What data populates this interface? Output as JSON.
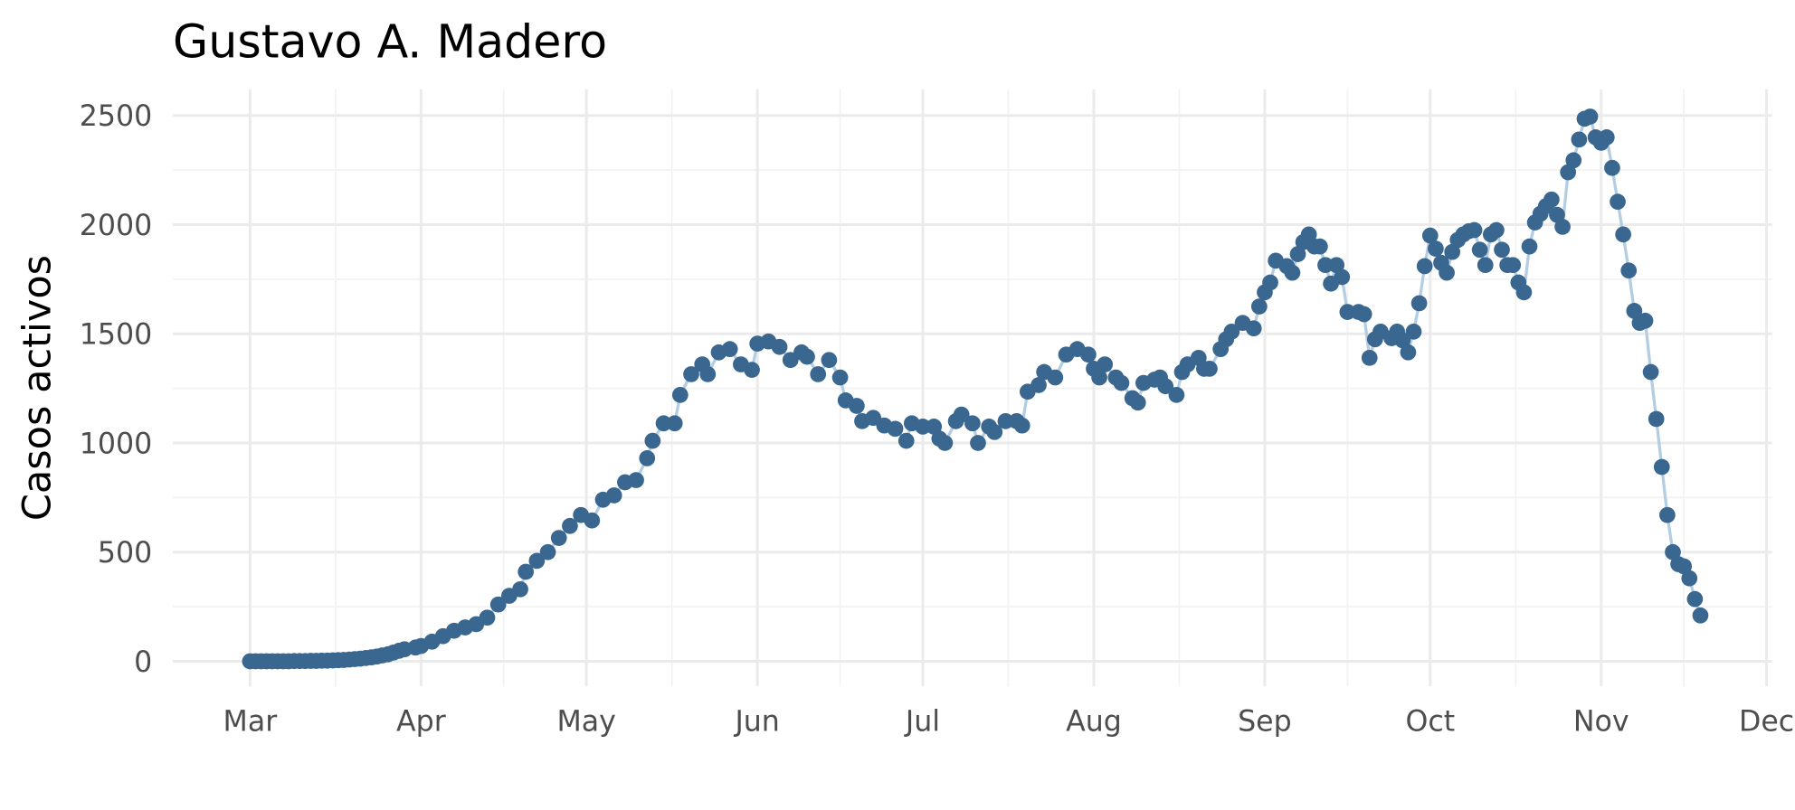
{
  "chart_data": {
    "type": "line",
    "title": "Gustavo A. Madero",
    "ylabel": "Casos activos",
    "x": [
      0,
      1,
      2,
      3,
      4,
      5,
      6,
      7,
      8,
      9,
      10,
      11,
      12,
      13,
      14,
      15,
      16,
      17,
      18,
      19,
      20,
      21,
      22,
      23,
      24,
      25,
      26,
      27,
      28,
      30,
      31,
      33,
      35,
      37,
      39,
      41,
      43,
      45,
      47,
      49,
      50,
      52,
      54,
      56,
      58,
      60,
      62,
      64,
      66,
      68,
      70,
      72,
      73,
      75,
      77,
      78,
      80,
      82,
      83,
      85,
      87,
      89,
      91,
      92,
      94,
      96,
      98,
      100,
      101,
      103,
      105,
      107,
      108,
      110,
      111,
      113,
      115,
      117,
      119,
      120,
      122,
      124,
      125,
      126,
      128,
      129,
      131,
      132,
      134,
      135,
      137,
      139,
      140,
      141,
      143,
      144,
      146,
      148,
      150,
      152,
      153,
      154,
      155,
      157,
      158,
      160,
      161,
      162,
      164,
      165,
      166,
      168,
      169,
      170,
      172,
      173,
      174,
      176,
      177,
      178,
      180,
      182,
      183,
      184,
      185,
      186,
      188,
      189,
      190,
      191,
      192,
      193,
      194,
      195,
      196,
      197,
      198,
      199,
      201,
      202,
      203,
      204,
      205,
      207,
      208,
      209,
      210,
      211,
      212,
      213,
      214,
      215,
      216,
      217,
      218,
      219,
      220,
      221,
      222,
      223,
      224,
      225,
      226,
      227,
      228,
      229,
      230,
      231,
      232,
      233,
      234,
      235,
      236,
      237,
      238,
      239,
      240,
      241,
      242,
      243,
      244,
      245,
      246,
      247,
      248,
      249,
      250,
      251,
      252,
      253,
      254,
      255,
      256,
      257,
      258,
      259,
      260,
      261,
      262,
      263
    ],
    "series": [
      {
        "name": "Casos activos",
        "color": "#3a6790",
        "line_color": "#b3cde3",
        "values": [
          0,
          0,
          0,
          0,
          0,
          0,
          0,
          0,
          1,
          1,
          1,
          2,
          2,
          3,
          3,
          4,
          5,
          6,
          8,
          10,
          12,
          15,
          18,
          22,
          27,
          32,
          40,
          48,
          55,
          63,
          70,
          90,
          115,
          140,
          155,
          170,
          200,
          260,
          300,
          330,
          410,
          460,
          500,
          565,
          620,
          670,
          645,
          740,
          760,
          820,
          830,
          930,
          1010,
          1090,
          1090,
          1220,
          1315,
          1360,
          1315,
          1415,
          1430,
          1360,
          1335,
          1455,
          1465,
          1440,
          1380,
          1415,
          1395,
          1315,
          1380,
          1300,
          1195,
          1170,
          1100,
          1115,
          1080,
          1065,
          1010,
          1090,
          1075,
          1075,
          1020,
          1000,
          1100,
          1130,
          1090,
          1000,
          1075,
          1050,
          1100,
          1100,
          1080,
          1235,
          1265,
          1325,
          1300,
          1405,
          1430,
          1405,
          1340,
          1300,
          1360,
          1300,
          1275,
          1205,
          1185,
          1275,
          1290,
          1300,
          1260,
          1220,
          1325,
          1360,
          1390,
          1340,
          1340,
          1430,
          1475,
          1510,
          1550,
          1525,
          1625,
          1690,
          1735,
          1835,
          1810,
          1780,
          1865,
          1920,
          1955,
          1900,
          1900,
          1815,
          1730,
          1815,
          1760,
          1600,
          1600,
          1590,
          1390,
          1475,
          1510,
          1480,
          1510,
          1470,
          1415,
          1510,
          1640,
          1810,
          1950,
          1890,
          1825,
          1780,
          1875,
          1930,
          1955,
          1970,
          1975,
          1885,
          1815,
          1955,
          1975,
          1885,
          1815,
          1815,
          1735,
          1690,
          1900,
          2010,
          2050,
          2085,
          2115,
          2045,
          1990,
          2240,
          2295,
          2390,
          2485,
          2495,
          2400,
          2375,
          2400,
          2260,
          2105,
          1955,
          1790,
          1605,
          1550,
          1560,
          1325,
          1110,
          890,
          670,
          500,
          445,
          435,
          380,
          285,
          210
        ]
      }
    ],
    "xlim": [
      -14,
      276
    ],
    "ylim": [
      -115,
      2620
    ],
    "xticks": [
      {
        "value": 0,
        "label": "Mar"
      },
      {
        "value": 31,
        "label": "Apr"
      },
      {
        "value": 61,
        "label": "May"
      },
      {
        "value": 92,
        "label": "Jun"
      },
      {
        "value": 122,
        "label": "Jul"
      },
      {
        "value": 153,
        "label": "Aug"
      },
      {
        "value": 184,
        "label": "Sep"
      },
      {
        "value": 214,
        "label": "Oct"
      },
      {
        "value": 245,
        "label": "Nov"
      },
      {
        "value": 275,
        "label": "Dec"
      }
    ],
    "xticks_minor": [
      15.5,
      46,
      76.5,
      107,
      137.5,
      168.5,
      199,
      229.5,
      260
    ],
    "yticks": [
      0,
      500,
      1000,
      1500,
      2000,
      2500
    ],
    "yticks_minor": [
      250,
      750,
      1250,
      1750,
      2250
    ],
    "grid": true
  }
}
